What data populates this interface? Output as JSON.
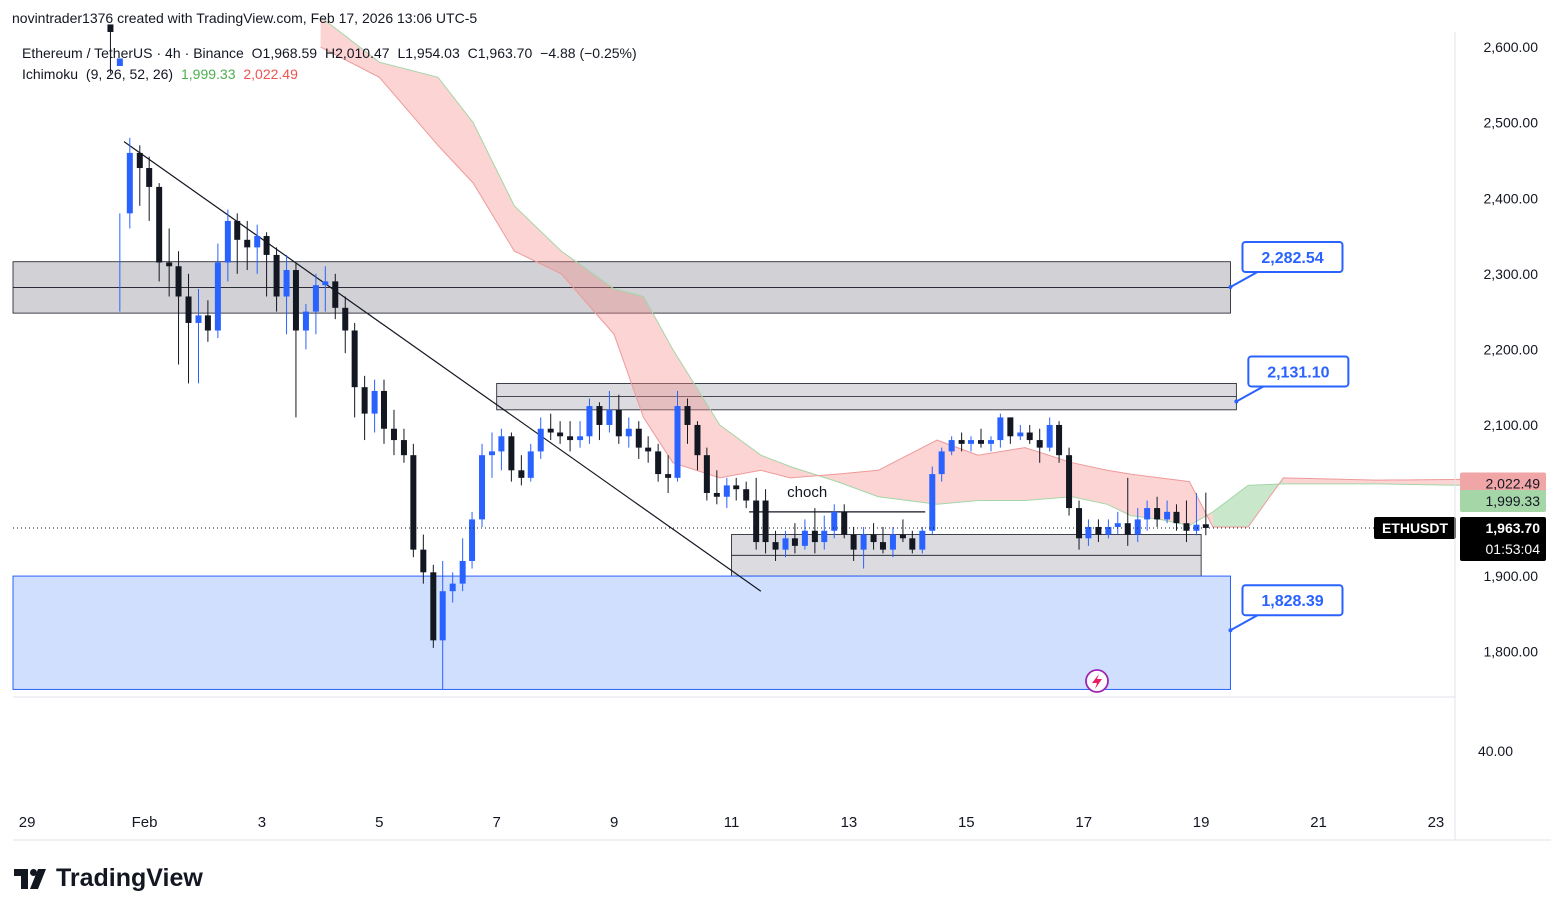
{
  "header": {
    "author": "novintrader1376",
    "created_text": "created with TradingView.com,",
    "date": "Feb 17, 2026 13:06 UTC-5"
  },
  "symbol_legend": {
    "name": "Ethereum / TetherUS",
    "interval": "4h",
    "exchange": "Binance",
    "open": "O1,968.59",
    "high": "H2,010.47",
    "low": "L1,954.03",
    "close": "C1,963.70",
    "change": "−4.88 (−0.25%)"
  },
  "indicator_legend": {
    "name": "Ichimoku",
    "params": "(9, 26, 52, 26)",
    "value_a": "1,999.33",
    "value_b": "2,022.49"
  },
  "chart_data": {
    "type": "candlestick",
    "title": "Ethereum / TetherUS · 4h · Binance",
    "y_axis": {
      "ticks": [
        2600,
        2500,
        2400,
        2300,
        2200,
        2100,
        1900,
        1800
      ],
      "tick_labels": [
        "2,600.00",
        "2,500.00",
        "2,400.00",
        "2,300.00",
        "2,200.00",
        "2,100.00",
        "1,900.00",
        "1,800.00"
      ],
      "range": [
        1740,
        2620
      ]
    },
    "sub_axis": {
      "tick_label": "40.00"
    },
    "x_axis": {
      "tick_labels": [
        "29",
        "Feb",
        "3",
        "5",
        "7",
        "9",
        "11",
        "13",
        "15",
        "17",
        "19",
        "21",
        "23"
      ],
      "tick_days": [
        -3,
        -1,
        1,
        3,
        5,
        7,
        9,
        11,
        13,
        15,
        17,
        19,
        21
      ],
      "day_range": [
        -3.24,
        22.96
      ]
    },
    "candles": [
      [
        -1.58,
        2630,
        2620,
        2620,
        2565
      ],
      [
        -1.42,
        2575,
        2585,
        2380,
        2250
      ],
      [
        -1.25,
        2380,
        2460,
        2480,
        2360
      ],
      [
        -1.08,
        2460,
        2440,
        2470,
        2390
      ],
      [
        -0.92,
        2440,
        2415,
        2455,
        2370
      ],
      [
        -0.75,
        2415,
        2315,
        2420,
        2290
      ],
      [
        -0.58,
        2315,
        2310,
        2360,
        2270
      ],
      [
        -0.42,
        2310,
        2270,
        2330,
        2180
      ],
      [
        -0.25,
        2270,
        2235,
        2300,
        2155
      ],
      [
        -0.08,
        2235,
        2245,
        2280,
        2155
      ],
      [
        0.08,
        2245,
        2225,
        2265,
        2210
      ],
      [
        0.25,
        2225,
        2315,
        2340,
        2215
      ],
      [
        0.42,
        2315,
        2370,
        2385,
        2290
      ],
      [
        0.58,
        2370,
        2345,
        2380,
        2300
      ],
      [
        0.75,
        2345,
        2335,
        2370,
        2305
      ],
      [
        0.92,
        2335,
        2350,
        2365,
        2300
      ],
      [
        1.08,
        2350,
        2325,
        2355,
        2270
      ],
      [
        1.25,
        2325,
        2270,
        2335,
        2250
      ],
      [
        1.42,
        2270,
        2305,
        2325,
        2220
      ],
      [
        1.58,
        2305,
        2225,
        2315,
        2110
      ],
      [
        1.75,
        2225,
        2250,
        2260,
        2200
      ],
      [
        1.92,
        2250,
        2285,
        2300,
        2220
      ],
      [
        2.08,
        2285,
        2290,
        2310,
        2250
      ],
      [
        2.25,
        2290,
        2255,
        2300,
        2240
      ],
      [
        2.42,
        2255,
        2225,
        2270,
        2195
      ],
      [
        2.58,
        2225,
        2150,
        2235,
        2110
      ],
      [
        2.75,
        2150,
        2115,
        2165,
        2080
      ],
      [
        2.92,
        2115,
        2145,
        2160,
        2090
      ],
      [
        3.08,
        2145,
        2095,
        2160,
        2075
      ],
      [
        3.25,
        2095,
        2080,
        2120,
        2060
      ],
      [
        3.42,
        2080,
        2060,
        2095,
        2050
      ],
      [
        3.58,
        2060,
        1935,
        2075,
        1925
      ],
      [
        3.75,
        1935,
        1905,
        1955,
        1890
      ],
      [
        3.92,
        1905,
        1815,
        1915,
        1805
      ],
      [
        4.08,
        1815,
        1880,
        1920,
        1750
      ],
      [
        4.25,
        1880,
        1890,
        1905,
        1865
      ],
      [
        4.42,
        1890,
        1920,
        1950,
        1880
      ],
      [
        4.58,
        1920,
        1975,
        1985,
        1910
      ],
      [
        4.75,
        1975,
        2060,
        2075,
        1965
      ],
      [
        4.92,
        2060,
        2065,
        2090,
        2030
      ],
      [
        5.08,
        2065,
        2085,
        2095,
        2040
      ],
      [
        5.25,
        2085,
        2040,
        2090,
        2025
      ],
      [
        5.42,
        2040,
        2030,
        2060,
        2020
      ],
      [
        5.58,
        2030,
        2065,
        2075,
        2025
      ],
      [
        5.75,
        2065,
        2095,
        2110,
        2055
      ],
      [
        5.92,
        2095,
        2090,
        2115,
        2080
      ],
      [
        6.08,
        2090,
        2085,
        2105,
        2075
      ],
      [
        6.25,
        2085,
        2080,
        2105,
        2065
      ],
      [
        6.42,
        2080,
        2085,
        2105,
        2070
      ],
      [
        6.58,
        2085,
        2125,
        2135,
        2075
      ],
      [
        6.75,
        2125,
        2100,
        2130,
        2080
      ],
      [
        6.92,
        2100,
        2120,
        2145,
        2090
      ],
      [
        7.08,
        2120,
        2085,
        2140,
        2075
      ],
      [
        7.25,
        2085,
        2095,
        2110,
        2070
      ],
      [
        7.42,
        2095,
        2070,
        2105,
        2055
      ],
      [
        7.58,
        2070,
        2065,
        2085,
        2050
      ],
      [
        7.75,
        2065,
        2035,
        2075,
        2025
      ],
      [
        7.92,
        2035,
        2030,
        2060,
        2010
      ],
      [
        8.08,
        2030,
        2125,
        2145,
        2025
      ],
      [
        8.25,
        2125,
        2100,
        2135,
        2075
      ],
      [
        8.42,
        2100,
        2060,
        2105,
        2040
      ],
      [
        8.58,
        2060,
        2010,
        2070,
        2000
      ],
      [
        8.75,
        2010,
        2005,
        2040,
        1995
      ],
      [
        8.92,
        2005,
        2020,
        2030,
        1990
      ],
      [
        9.08,
        2020,
        2015,
        2030,
        2000
      ],
      [
        9.25,
        2015,
        2000,
        2025,
        1990
      ],
      [
        9.42,
        2000,
        1945,
        2030,
        1935
      ],
      [
        9.58,
        2000,
        1945,
        2015,
        1930
      ],
      [
        9.75,
        1945,
        1935,
        1960,
        1920
      ],
      [
        9.92,
        1935,
        1950,
        1960,
        1925
      ],
      [
        10.08,
        1950,
        1940,
        1970,
        1930
      ],
      [
        10.25,
        1940,
        1960,
        1975,
        1935
      ],
      [
        10.42,
        1960,
        1945,
        1990,
        1930
      ],
      [
        10.58,
        1945,
        1960,
        1980,
        1935
      ],
      [
        10.75,
        1960,
        1985,
        1995,
        1950
      ],
      [
        10.92,
        1985,
        1955,
        1995,
        1950
      ],
      [
        11.08,
        1955,
        1935,
        1965,
        1920
      ],
      [
        11.25,
        1935,
        1955,
        1965,
        1910
      ],
      [
        11.42,
        1955,
        1945,
        1970,
        1935
      ],
      [
        11.58,
        1945,
        1935,
        1965,
        1930
      ],
      [
        11.75,
        1935,
        1955,
        1965,
        1925
      ],
      [
        11.92,
        1955,
        1950,
        1975,
        1945
      ],
      [
        12.08,
        1950,
        1935,
        1960,
        1930
      ],
      [
        12.25,
        1935,
        1960,
        1965,
        1930
      ],
      [
        12.42,
        1960,
        2035,
        2045,
        1955
      ],
      [
        12.58,
        2035,
        2065,
        2070,
        2025
      ],
      [
        12.75,
        2065,
        2080,
        2085,
        2060
      ],
      [
        12.92,
        2080,
        2075,
        2090,
        2065
      ],
      [
        13.08,
        2075,
        2080,
        2085,
        2065
      ],
      [
        13.25,
        2080,
        2075,
        2095,
        2070
      ],
      [
        13.42,
        2075,
        2080,
        2085,
        2065
      ],
      [
        13.58,
        2080,
        2110,
        2115,
        2070
      ],
      [
        13.75,
        2110,
        2085,
        2110,
        2075
      ],
      [
        13.92,
        2085,
        2090,
        2100,
        2080
      ],
      [
        14.08,
        2090,
        2080,
        2100,
        2075
      ],
      [
        14.25,
        2080,
        2070,
        2095,
        2050
      ],
      [
        14.42,
        2070,
        2100,
        2110,
        2065
      ],
      [
        14.58,
        2100,
        2060,
        2105,
        2050
      ],
      [
        14.75,
        2060,
        1990,
        2070,
        1980
      ],
      [
        14.92,
        1990,
        1950,
        2000,
        1935
      ],
      [
        15.08,
        1950,
        1965,
        1975,
        1940
      ],
      [
        15.25,
        1965,
        1955,
        1975,
        1945
      ],
      [
        15.42,
        1955,
        1965,
        1975,
        1950
      ],
      [
        15.58,
        1965,
        1970,
        1985,
        1955
      ],
      [
        15.75,
        1970,
        1955,
        2030,
        1940
      ],
      [
        15.92,
        1955,
        1975,
        1990,
        1945
      ],
      [
        16.08,
        1975,
        1990,
        2000,
        1960
      ],
      [
        16.25,
        1990,
        1975,
        2005,
        1965
      ],
      [
        16.42,
        1975,
        1985,
        2000,
        1970
      ],
      [
        16.58,
        1985,
        1970,
        1995,
        1960
      ],
      [
        16.75,
        1970,
        1960,
        2000,
        1945
      ],
      [
        16.92,
        1960,
        1968,
        2010,
        1954
      ],
      [
        17.08,
        1968.59,
        1963.7,
        2010.47,
        1954.03
      ]
    ],
    "ichimoku": {
      "params": [
        9,
        26,
        52,
        26
      ],
      "span_a": 1999.33,
      "span_b": 2022.49,
      "cloud_upper": [
        [
          2.0,
          2640
        ],
        [
          3.0,
          2580
        ],
        [
          4.0,
          2560
        ],
        [
          4.6,
          2500
        ],
        [
          5.3,
          2390
        ],
        [
          6.1,
          2330
        ],
        [
          7.0,
          2280
        ],
        [
          7.5,
          2270
        ],
        [
          8.0,
          2200
        ],
        [
          8.8,
          2100
        ],
        [
          9.5,
          2060
        ],
        [
          10.0,
          2045
        ],
        [
          10.8,
          2025
        ],
        [
          11.5,
          2005
        ],
        [
          12.5,
          1995
        ],
        [
          13.2,
          2000
        ],
        [
          14.0,
          2000
        ],
        [
          14.8,
          2005
        ],
        [
          15.4,
          1995
        ],
        [
          15.8,
          1980
        ],
        [
          16.3,
          1975
        ],
        [
          16.8,
          1967
        ],
        [
          17.2,
          1985
        ],
        [
          17.8,
          2020
        ],
        [
          18.4,
          2022
        ],
        [
          20.0,
          2022
        ],
        [
          21.5,
          2020
        ]
      ],
      "cloud_lower": [
        [
          2.0,
          2600
        ],
        [
          3.0,
          2560
        ],
        [
          4.0,
          2470
        ],
        [
          4.6,
          2420
        ],
        [
          5.3,
          2330
        ],
        [
          6.1,
          2300
        ],
        [
          7.0,
          2220
        ],
        [
          7.5,
          2110
        ],
        [
          8.0,
          2050
        ],
        [
          8.8,
          2030
        ],
        [
          9.5,
          2040
        ],
        [
          10.0,
          2030
        ],
        [
          10.8,
          2035
        ],
        [
          11.5,
          2040
        ],
        [
          12.5,
          2080
        ],
        [
          13.2,
          2060
        ],
        [
          14.0,
          2070
        ],
        [
          14.8,
          2050
        ],
        [
          15.4,
          2040
        ],
        [
          15.8,
          2035
        ],
        [
          16.3,
          2030
        ],
        [
          16.8,
          2025
        ],
        [
          17.2,
          1965
        ],
        [
          17.8,
          1965
        ],
        [
          18.4,
          2030
        ],
        [
          20.0,
          2027
        ],
        [
          21.5,
          2028
        ]
      ]
    },
    "zones": [
      {
        "name": "resistance-zone-upper",
        "low": 2248,
        "high": 2316,
        "start_day": -3.24,
        "end_day": 17.5
      },
      {
        "name": "resistance-zone-mid",
        "low": 2120,
        "high": 2155,
        "start_day": 5.0,
        "end_day": 17.6
      },
      {
        "name": "support-zone",
        "low": 1900,
        "high": 1955,
        "start_day": 9.0,
        "end_day": 17.0
      },
      {
        "name": "demand-zone",
        "low": 1750,
        "high": 1900,
        "start_day": -3.24,
        "end_day": 17.5
      }
    ],
    "trendline": {
      "from": [
        -1.35,
        2475
      ],
      "to": [
        9.5,
        1880
      ]
    },
    "choch": {
      "label": "choch",
      "level": 1985,
      "from_day": 9.3,
      "to_day": 12.3
    },
    "callouts": [
      {
        "label": "2,282.54",
        "value": 2282.54,
        "anchor_day": 17.5
      },
      {
        "label": "2,131.10",
        "value": 2131.1,
        "anchor_day": 17.6
      },
      {
        "label": "1,828.39",
        "value": 1828.39,
        "anchor_day": 17.5
      }
    ],
    "last_price": 1963.7,
    "price_tags": [
      {
        "name": "lagging-tag",
        "text": "2,022.49",
        "value": 2022.49,
        "bg": "#f0a5a7",
        "fg": "#131722"
      },
      {
        "name": "leading-tag",
        "text": "1,999.33",
        "value": 1999.33,
        "bg": "#a5d6a7",
        "fg": "#131722"
      },
      {
        "name": "last-price-tag",
        "text": "1,963.70",
        "value": 1963.7,
        "bg": "#000000",
        "fg": "#ffffff",
        "sub": "01:53:04"
      }
    ],
    "symbol_tag": "ETHUSDT"
  },
  "colors": {
    "bull": "#2962ff",
    "bear": "#131722",
    "cloud_bear": "rgba(239,83,80,0.25)",
    "cloud_bull": "rgba(76,175,80,0.3)",
    "zone_gray": "#d1d1d6",
    "zone_blue": "#d1dffe",
    "callout_border": "#2962ff",
    "callout_text": "#2962ff"
  },
  "brand": "TradingView"
}
